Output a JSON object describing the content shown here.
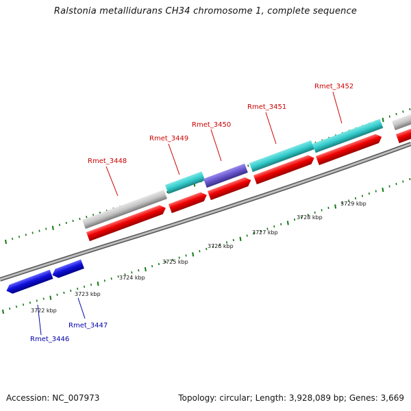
{
  "title": "Ralstonia metallidurans CH34 chromosome 1, complete sequence",
  "footer": {
    "accession": "Accession: NC_007973",
    "summary": "Topology: circular; Length: 3,928,089 bp; Genes: 3,669"
  },
  "colors": {
    "forward_gene": "#ee0000",
    "reverse_gene": "#1111dd",
    "cds_gray": "#c4c4c4",
    "cds_teal": "#33cccc",
    "cds_purple": "#6655cc",
    "backbone": "#888888",
    "ticks": "#117711",
    "label_forward": "#cc0000",
    "label_reverse": "#0000aa"
  },
  "scale_labels": [
    "3722 kbp",
    "3723 kbp",
    "3724 kbp",
    "3725 kbp",
    "3726 kbp",
    "3727 kbp",
    "3728 kbp",
    "3729 kbp"
  ],
  "gene_labels": {
    "forward": [
      "Rmet_3448",
      "Rmet_3449",
      "Rmet_3450",
      "Rmet_3451",
      "Rmet_3452"
    ],
    "reverse": [
      "Rmet_3446",
      "Rmet_3447"
    ]
  }
}
